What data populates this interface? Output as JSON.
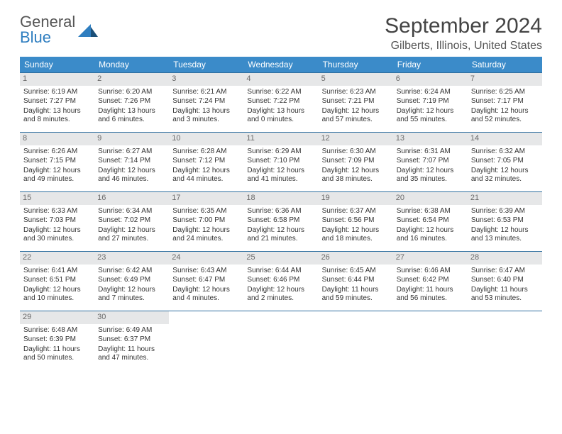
{
  "brand": {
    "part1": "General",
    "part2": "Blue"
  },
  "title": "September 2024",
  "location": "Gilberts, Illinois, United States",
  "colors": {
    "header_bg": "#3b8bc9",
    "header_text": "#ffffff",
    "daynum_bg": "#e6e7e8",
    "daynum_text": "#6a6a6a",
    "rule": "#2f6f9f",
    "body_text": "#333333"
  },
  "weekdays": [
    "Sunday",
    "Monday",
    "Tuesday",
    "Wednesday",
    "Thursday",
    "Friday",
    "Saturday"
  ],
  "days": [
    {
      "n": 1,
      "sr": "6:19 AM",
      "ss": "7:27 PM",
      "dl": "13 hours and 8 minutes."
    },
    {
      "n": 2,
      "sr": "6:20 AM",
      "ss": "7:26 PM",
      "dl": "13 hours and 6 minutes."
    },
    {
      "n": 3,
      "sr": "6:21 AM",
      "ss": "7:24 PM",
      "dl": "13 hours and 3 minutes."
    },
    {
      "n": 4,
      "sr": "6:22 AM",
      "ss": "7:22 PM",
      "dl": "13 hours and 0 minutes."
    },
    {
      "n": 5,
      "sr": "6:23 AM",
      "ss": "7:21 PM",
      "dl": "12 hours and 57 minutes."
    },
    {
      "n": 6,
      "sr": "6:24 AM",
      "ss": "7:19 PM",
      "dl": "12 hours and 55 minutes."
    },
    {
      "n": 7,
      "sr": "6:25 AM",
      "ss": "7:17 PM",
      "dl": "12 hours and 52 minutes."
    },
    {
      "n": 8,
      "sr": "6:26 AM",
      "ss": "7:15 PM",
      "dl": "12 hours and 49 minutes."
    },
    {
      "n": 9,
      "sr": "6:27 AM",
      "ss": "7:14 PM",
      "dl": "12 hours and 46 minutes."
    },
    {
      "n": 10,
      "sr": "6:28 AM",
      "ss": "7:12 PM",
      "dl": "12 hours and 44 minutes."
    },
    {
      "n": 11,
      "sr": "6:29 AM",
      "ss": "7:10 PM",
      "dl": "12 hours and 41 minutes."
    },
    {
      "n": 12,
      "sr": "6:30 AM",
      "ss": "7:09 PM",
      "dl": "12 hours and 38 minutes."
    },
    {
      "n": 13,
      "sr": "6:31 AM",
      "ss": "7:07 PM",
      "dl": "12 hours and 35 minutes."
    },
    {
      "n": 14,
      "sr": "6:32 AM",
      "ss": "7:05 PM",
      "dl": "12 hours and 32 minutes."
    },
    {
      "n": 15,
      "sr": "6:33 AM",
      "ss": "7:03 PM",
      "dl": "12 hours and 30 minutes."
    },
    {
      "n": 16,
      "sr": "6:34 AM",
      "ss": "7:02 PM",
      "dl": "12 hours and 27 minutes."
    },
    {
      "n": 17,
      "sr": "6:35 AM",
      "ss": "7:00 PM",
      "dl": "12 hours and 24 minutes."
    },
    {
      "n": 18,
      "sr": "6:36 AM",
      "ss": "6:58 PM",
      "dl": "12 hours and 21 minutes."
    },
    {
      "n": 19,
      "sr": "6:37 AM",
      "ss": "6:56 PM",
      "dl": "12 hours and 18 minutes."
    },
    {
      "n": 20,
      "sr": "6:38 AM",
      "ss": "6:54 PM",
      "dl": "12 hours and 16 minutes."
    },
    {
      "n": 21,
      "sr": "6:39 AM",
      "ss": "6:53 PM",
      "dl": "12 hours and 13 minutes."
    },
    {
      "n": 22,
      "sr": "6:41 AM",
      "ss": "6:51 PM",
      "dl": "12 hours and 10 minutes."
    },
    {
      "n": 23,
      "sr": "6:42 AM",
      "ss": "6:49 PM",
      "dl": "12 hours and 7 minutes."
    },
    {
      "n": 24,
      "sr": "6:43 AM",
      "ss": "6:47 PM",
      "dl": "12 hours and 4 minutes."
    },
    {
      "n": 25,
      "sr": "6:44 AM",
      "ss": "6:46 PM",
      "dl": "12 hours and 2 minutes."
    },
    {
      "n": 26,
      "sr": "6:45 AM",
      "ss": "6:44 PM",
      "dl": "11 hours and 59 minutes."
    },
    {
      "n": 27,
      "sr": "6:46 AM",
      "ss": "6:42 PM",
      "dl": "11 hours and 56 minutes."
    },
    {
      "n": 28,
      "sr": "6:47 AM",
      "ss": "6:40 PM",
      "dl": "11 hours and 53 minutes."
    },
    {
      "n": 29,
      "sr": "6:48 AM",
      "ss": "6:39 PM",
      "dl": "11 hours and 50 minutes."
    },
    {
      "n": 30,
      "sr": "6:49 AM",
      "ss": "6:37 PM",
      "dl": "11 hours and 47 minutes."
    }
  ],
  "labels": {
    "sunrise": "Sunrise:",
    "sunset": "Sunset:",
    "daylight": "Daylight:"
  },
  "layout": {
    "leading_blanks": 0,
    "trailing_blanks": 5,
    "columns": 7
  }
}
